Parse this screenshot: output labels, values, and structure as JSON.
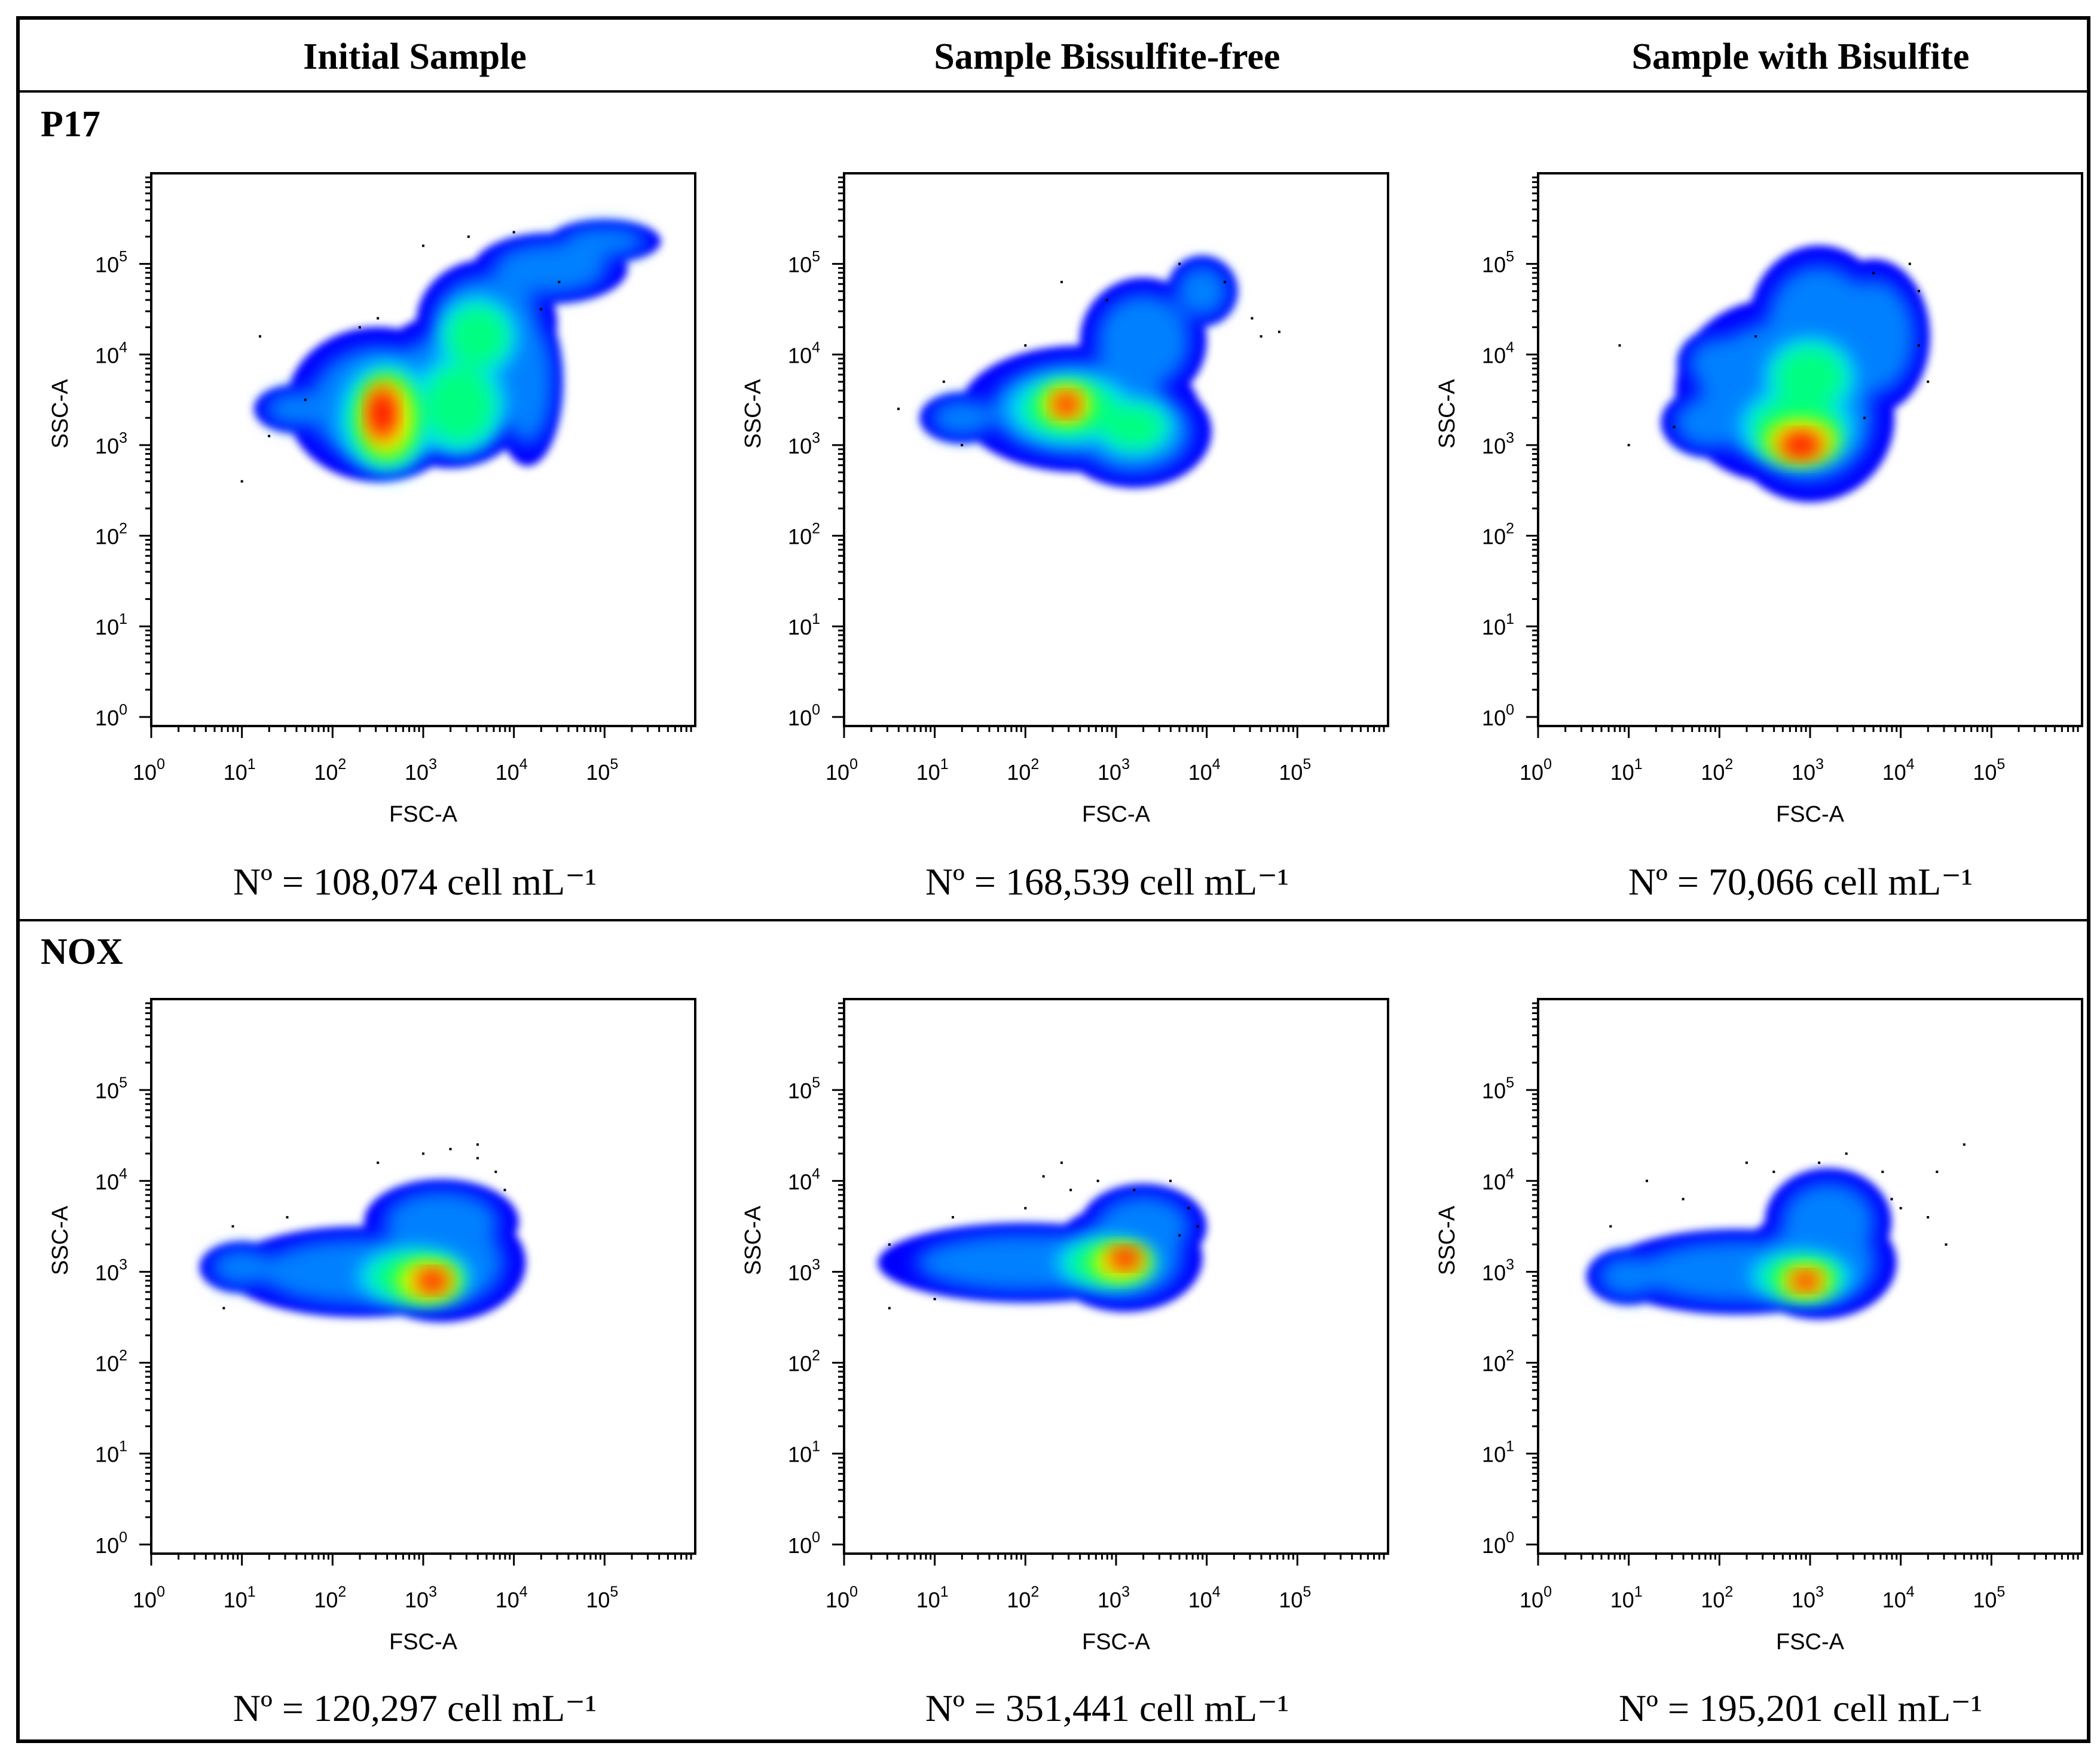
{
  "columns": [
    "Initial Sample",
    "Sample Bissulfite-free",
    "Sample with Bisulfite"
  ],
  "rows": [
    "P17",
    "NOX"
  ],
  "count_prefix": "Nº = ",
  "count_unit": " cell mL⁻¹",
  "colors": {
    "density_scale": [
      "#0000ff",
      "#0080ff",
      "#00e0ff",
      "#00ff80",
      "#80ff00",
      "#ffff00",
      "#ff8000",
      "#ff0000"
    ],
    "frame": "#000000",
    "dot": "#000000"
  },
  "chart_data": [
    {
      "type": "scatter",
      "row": "P17",
      "column": "Initial Sample",
      "xlabel": "FSC-A",
      "ylabel": "SSC-A",
      "xlim": [
        0,
        6
      ],
      "ylim": [
        -0.1,
        6
      ],
      "tick_base": "10",
      "tick_exponents": [
        "0",
        "1",
        "2",
        "3",
        "4",
        "5"
      ],
      "count_value": "108,074",
      "population": [
        {
          "x": 2.5,
          "y": 3.45,
          "sx": 0.65,
          "sy": 0.55
        },
        {
          "x": 3.3,
          "y": 3.6,
          "sx": 0.6,
          "sy": 0.55
        },
        {
          "x": 3.7,
          "y": 4.35,
          "sx": 0.5,
          "sy": 0.45
        },
        {
          "x": 4.4,
          "y": 4.95,
          "sx": 0.55,
          "sy": 0.25
        },
        {
          "x": 5.0,
          "y": 5.25,
          "sx": 0.4,
          "sy": 0.15
        },
        {
          "x": 4.15,
          "y": 3.7,
          "sx": 0.25,
          "sy": 0.6
        },
        {
          "x": 1.6,
          "y": 3.4,
          "sx": 0.3,
          "sy": 0.17
        }
      ],
      "density": [
        {
          "x": 2.6,
          "y": 3.3,
          "sx": 0.42,
          "sy": 0.5
        },
        {
          "x": 3.4,
          "y": 3.45,
          "sx": 0.4,
          "sy": 0.45
        },
        {
          "x": 3.6,
          "y": 4.2,
          "sx": 0.35,
          "sy": 0.35
        }
      ],
      "core": [
        {
          "x": 2.6,
          "y": 3.3,
          "sx": 0.25,
          "sy": 0.38
        }
      ],
      "hot": [
        {
          "x": 2.55,
          "y": 3.35,
          "sx": 0.13,
          "sy": 0.25
        }
      ],
      "outliers": [
        [
          1.0,
          2.6
        ],
        [
          1.3,
          3.1
        ],
        [
          1.7,
          3.5
        ],
        [
          1.2,
          4.2
        ],
        [
          2.3,
          4.3
        ],
        [
          3.0,
          5.2
        ],
        [
          3.5,
          5.3
        ],
        [
          4.0,
          5.35
        ],
        [
          4.5,
          4.8
        ],
        [
          4.3,
          4.5
        ],
        [
          2.5,
          4.4
        ]
      ]
    },
    {
      "type": "scatter",
      "row": "P17",
      "column": "Sample Bissulfite-free",
      "xlabel": "FSC-A",
      "ylabel": "SSC-A",
      "xlim": [
        0,
        6
      ],
      "ylim": [
        -0.1,
        6
      ],
      "tick_base": "10",
      "tick_exponents": [
        "0",
        "1",
        "2",
        "3",
        "4",
        "5"
      ],
      "count_value": "168,539",
      "population": [
        {
          "x": 2.6,
          "y": 3.4,
          "sx": 0.85,
          "sy": 0.45
        },
        {
          "x": 3.2,
          "y": 3.15,
          "sx": 0.55,
          "sy": 0.4
        },
        {
          "x": 3.3,
          "y": 4.15,
          "sx": 0.45,
          "sy": 0.45
        },
        {
          "x": 3.95,
          "y": 4.7,
          "sx": 0.25,
          "sy": 0.25
        },
        {
          "x": 1.3,
          "y": 3.3,
          "sx": 0.3,
          "sy": 0.18
        }
      ],
      "density": [
        {
          "x": 2.5,
          "y": 3.4,
          "sx": 0.55,
          "sy": 0.3
        },
        {
          "x": 3.2,
          "y": 3.2,
          "sx": 0.35,
          "sy": 0.25
        }
      ],
      "core": [
        {
          "x": 2.45,
          "y": 3.45,
          "sx": 0.24,
          "sy": 0.18
        }
      ],
      "hot": [
        {
          "x": 2.45,
          "y": 3.45,
          "sx": 0.12,
          "sy": 0.1
        }
      ],
      "outliers": [
        [
          0.6,
          3.4
        ],
        [
          1.1,
          3.7
        ],
        [
          2.0,
          4.1
        ],
        [
          2.4,
          4.8
        ],
        [
          2.9,
          4.6
        ],
        [
          3.7,
          5.0
        ],
        [
          4.2,
          4.8
        ],
        [
          4.5,
          4.4
        ],
        [
          4.6,
          4.2
        ],
        [
          4.8,
          4.25
        ],
        [
          1.3,
          3.0
        ]
      ]
    },
    {
      "type": "scatter",
      "row": "P17",
      "column": "Sample with Bisulfite",
      "xlabel": "FSC-A",
      "ylabel": "SSC-A",
      "xlim": [
        0,
        6
      ],
      "ylim": [
        -0.1,
        6
      ],
      "tick_base": "10",
      "tick_exponents": [
        "0",
        "1",
        "2",
        "3",
        "4",
        "5"
      ],
      "count_value": "70,066",
      "population": [
        {
          "x": 2.6,
          "y": 3.6,
          "sx": 0.7,
          "sy": 0.65
        },
        {
          "x": 3.0,
          "y": 3.3,
          "sx": 0.6,
          "sy": 0.6
        },
        {
          "x": 3.1,
          "y": 4.35,
          "sx": 0.5,
          "sy": 0.55
        },
        {
          "x": 3.7,
          "y": 4.2,
          "sx": 0.4,
          "sy": 0.55
        },
        {
          "x": 1.9,
          "y": 3.25,
          "sx": 0.35,
          "sy": 0.25
        },
        {
          "x": 2.0,
          "y": 3.9,
          "sx": 0.3,
          "sy": 0.25
        }
      ],
      "density": [
        {
          "x": 2.85,
          "y": 3.2,
          "sx": 0.5,
          "sy": 0.35
        },
        {
          "x": 3.0,
          "y": 3.75,
          "sx": 0.4,
          "sy": 0.35
        }
      ],
      "core": [
        {
          "x": 2.9,
          "y": 3.05,
          "sx": 0.35,
          "sy": 0.2
        }
      ],
      "hot": [
        {
          "x": 2.9,
          "y": 3.0,
          "sx": 0.2,
          "sy": 0.12
        }
      ],
      "outliers": [
        [
          1.0,
          3.0
        ],
        [
          1.5,
          3.2
        ],
        [
          0.9,
          4.1
        ],
        [
          2.4,
          4.2
        ],
        [
          3.7,
          4.9
        ],
        [
          4.1,
          5.0
        ],
        [
          4.2,
          4.7
        ],
        [
          4.2,
          4.1
        ],
        [
          4.3,
          3.7
        ],
        [
          3.6,
          3.3
        ]
      ]
    },
    {
      "type": "scatter",
      "row": "NOX",
      "column": "Initial Sample",
      "xlabel": "FSC-A",
      "ylabel": "SSC-A",
      "xlim": [
        0,
        6
      ],
      "ylim": [
        -0.1,
        6
      ],
      "tick_base": "10",
      "tick_exponents": [
        "0",
        "1",
        "2",
        "3",
        "4",
        "5"
      ],
      "count_value": "120,297",
      "population": [
        {
          "x": 2.3,
          "y": 3.0,
          "sx": 0.95,
          "sy": 0.32
        },
        {
          "x": 3.2,
          "y": 3.1,
          "sx": 0.6,
          "sy": 0.42
        },
        {
          "x": 3.2,
          "y": 3.55,
          "sx": 0.55,
          "sy": 0.3
        },
        {
          "x": 1.0,
          "y": 3.05,
          "sx": 0.3,
          "sy": 0.18
        }
      ],
      "density": [
        {
          "x": 2.9,
          "y": 2.95,
          "sx": 0.5,
          "sy": 0.25
        }
      ],
      "core": [
        {
          "x": 3.05,
          "y": 2.9,
          "sx": 0.3,
          "sy": 0.18
        }
      ],
      "hot": [
        {
          "x": 3.1,
          "y": 2.9,
          "sx": 0.15,
          "sy": 0.1
        }
      ],
      "outliers": [
        [
          0.9,
          3.5
        ],
        [
          0.8,
          2.6
        ],
        [
          2.5,
          4.2
        ],
        [
          3.0,
          4.3
        ],
        [
          3.3,
          4.35
        ],
        [
          3.6,
          4.25
        ],
        [
          3.8,
          4.1
        ],
        [
          3.9,
          3.9
        ],
        [
          3.6,
          4.4
        ],
        [
          1.5,
          3.6
        ]
      ]
    },
    {
      "type": "scatter",
      "row": "NOX",
      "column": "Sample Bissulfite-free",
      "xlabel": "FSC-A",
      "ylabel": "SSC-A",
      "xlim": [
        0,
        6
      ],
      "ylim": [
        -0.1,
        6
      ],
      "tick_base": "10",
      "tick_exponents": [
        "0",
        "1",
        "2",
        "3",
        "4",
        "5"
      ],
      "count_value": "351,441",
      "population": [
        {
          "x": 2.0,
          "y": 3.1,
          "sx": 1.05,
          "sy": 0.28
        },
        {
          "x": 3.1,
          "y": 3.15,
          "sx": 0.55,
          "sy": 0.38
        },
        {
          "x": 3.3,
          "y": 3.5,
          "sx": 0.45,
          "sy": 0.3
        }
      ],
      "density": [
        {
          "x": 2.9,
          "y": 3.1,
          "sx": 0.45,
          "sy": 0.22
        }
      ],
      "core": [
        {
          "x": 3.05,
          "y": 3.1,
          "sx": 0.28,
          "sy": 0.16
        }
      ],
      "hot": [
        {
          "x": 3.1,
          "y": 3.15,
          "sx": 0.15,
          "sy": 0.09
        }
      ],
      "outliers": [
        [
          0.5,
          3.3
        ],
        [
          0.5,
          2.6
        ],
        [
          1.0,
          2.7
        ],
        [
          1.2,
          3.6
        ],
        [
          2.0,
          3.7
        ],
        [
          2.5,
          3.9
        ],
        [
          2.4,
          4.2
        ],
        [
          2.8,
          4.0
        ],
        [
          3.2,
          3.9
        ],
        [
          3.6,
          4.0
        ],
        [
          3.8,
          3.7
        ],
        [
          3.9,
          3.5
        ],
        [
          3.7,
          3.4
        ],
        [
          2.2,
          4.05
        ]
      ]
    },
    {
      "type": "scatter",
      "row": "NOX",
      "column": "Sample with Bisulfite",
      "xlabel": "FSC-A",
      "ylabel": "SSC-A",
      "xlim": [
        0,
        6
      ],
      "ylim": [
        -0.1,
        6
      ],
      "tick_base": "10",
      "tick_exponents": [
        "0",
        "1",
        "2",
        "3",
        "4",
        "5"
      ],
      "count_value": "195,201",
      "population": [
        {
          "x": 2.2,
          "y": 3.0,
          "sx": 0.95,
          "sy": 0.3
        },
        {
          "x": 3.1,
          "y": 3.1,
          "sx": 0.55,
          "sy": 0.4
        },
        {
          "x": 3.2,
          "y": 3.55,
          "sx": 0.45,
          "sy": 0.38
        },
        {
          "x": 1.0,
          "y": 2.95,
          "sx": 0.3,
          "sy": 0.2
        }
      ],
      "density": [
        {
          "x": 2.9,
          "y": 2.95,
          "sx": 0.45,
          "sy": 0.22
        }
      ],
      "core": [
        {
          "x": 2.95,
          "y": 2.9,
          "sx": 0.25,
          "sy": 0.15
        }
      ],
      "hot": [
        {
          "x": 2.95,
          "y": 2.9,
          "sx": 0.13,
          "sy": 0.08
        }
      ],
      "outliers": [
        [
          0.8,
          3.5
        ],
        [
          1.2,
          4.0
        ],
        [
          1.6,
          3.8
        ],
        [
          2.3,
          4.2
        ],
        [
          2.6,
          4.1
        ],
        [
          3.1,
          4.2
        ],
        [
          3.4,
          4.3
        ],
        [
          3.8,
          4.1
        ],
        [
          3.9,
          3.8
        ],
        [
          4.0,
          3.7
        ],
        [
          4.3,
          3.6
        ],
        [
          4.5,
          3.3
        ],
        [
          4.4,
          4.1
        ],
        [
          4.7,
          4.4
        ]
      ]
    }
  ]
}
